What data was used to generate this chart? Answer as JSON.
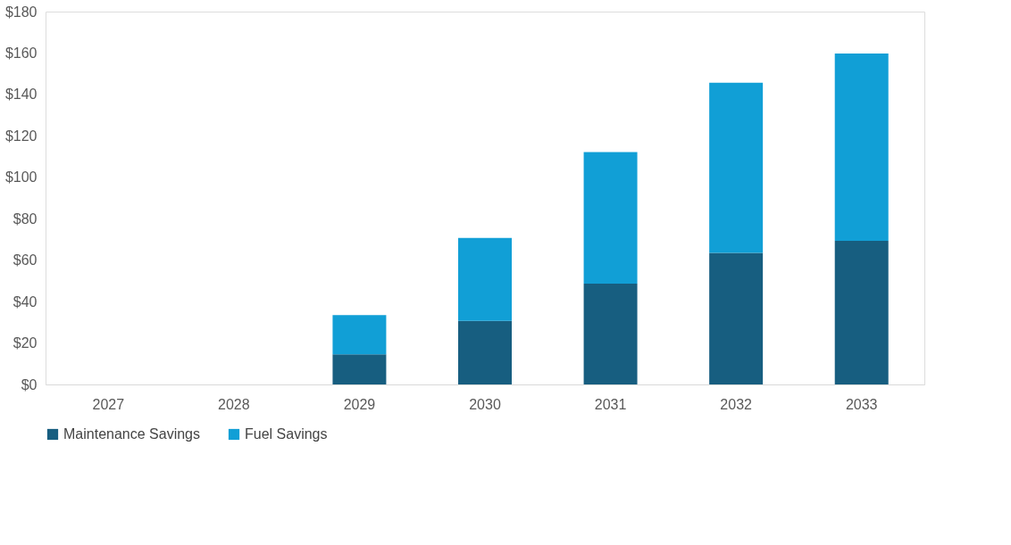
{
  "chart_data": {
    "type": "bar",
    "stacked": true,
    "categories": [
      "2027",
      "2028",
      "2029",
      "2030",
      "2031",
      "2032",
      "2033"
    ],
    "series": [
      {
        "name": "Maintenance Savings",
        "color": "#175e80",
        "values": [
          0,
          0,
          14.5,
          30.7,
          48.7,
          63.5,
          69.3
        ]
      },
      {
        "name": "Fuel Savings",
        "color": "#119fd6",
        "values": [
          0,
          0,
          19,
          40,
          63.5,
          82.2,
          90.5
        ]
      }
    ],
    "ylim": [
      0,
      180
    ],
    "yticks": [
      {
        "value": 0,
        "label": "$0"
      },
      {
        "value": 20,
        "label": "$20"
      },
      {
        "value": 40,
        "label": "$40"
      },
      {
        "value": 60,
        "label": "$60"
      },
      {
        "value": 80,
        "label": "$80"
      },
      {
        "value": 100,
        "label": "$100"
      },
      {
        "value": 120,
        "label": "$120"
      },
      {
        "value": 140,
        "label": "$140"
      },
      {
        "value": 160,
        "label": "$160"
      },
      {
        "value": 180,
        "label": "$180"
      }
    ],
    "grid": false,
    "legend": "bottom"
  }
}
